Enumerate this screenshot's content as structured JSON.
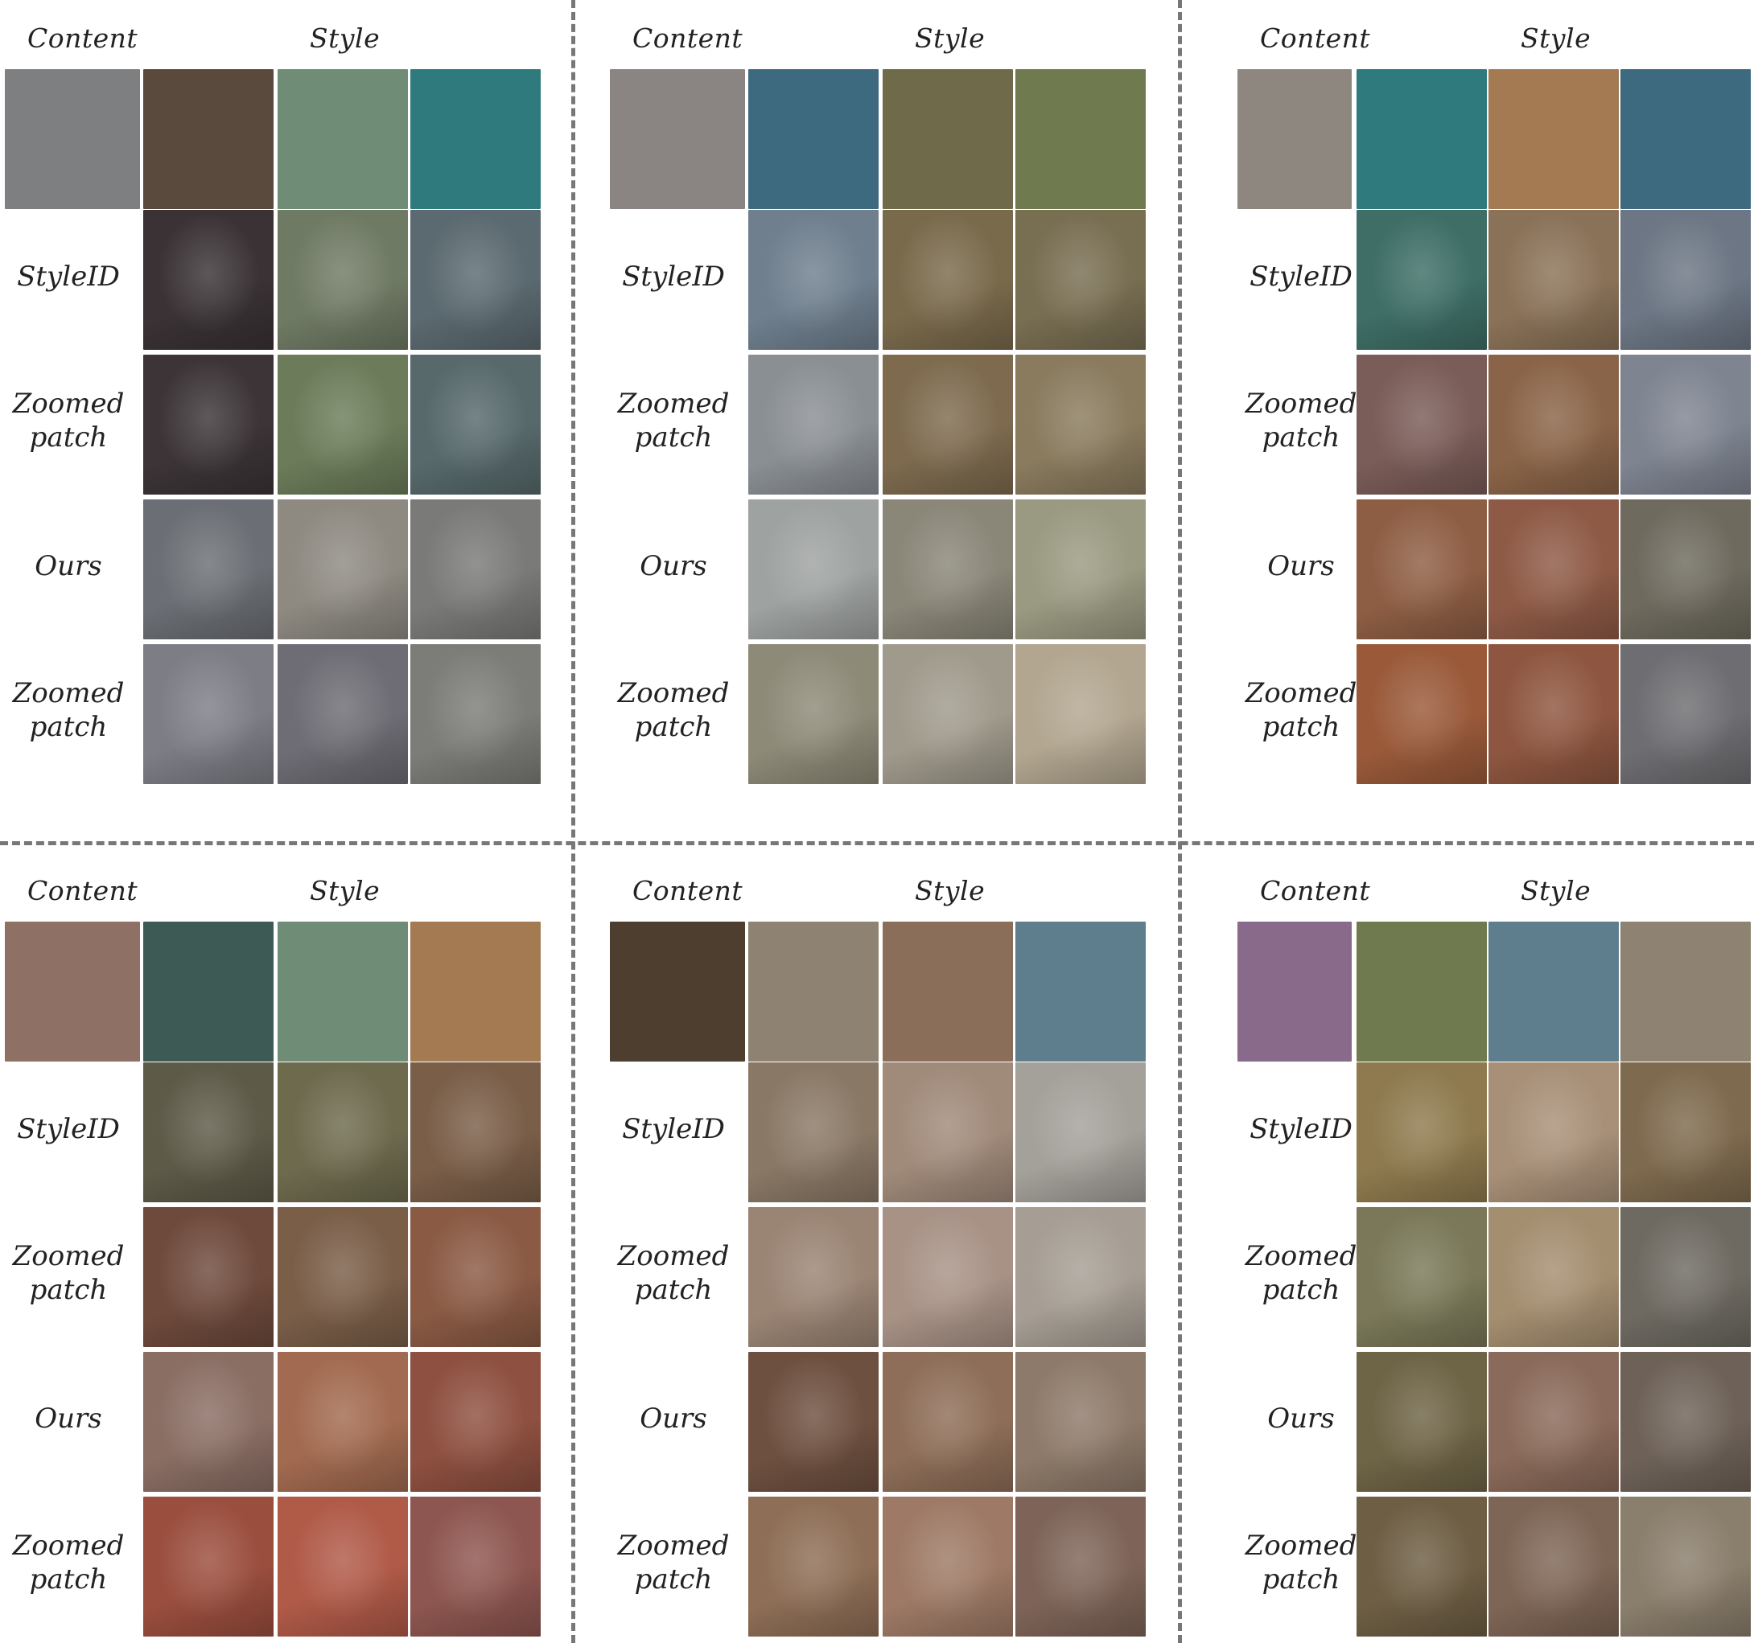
{
  "panels": [
    {
      "id": "cat-flowers",
      "headers": {
        "content": "Content",
        "style": "Style"
      },
      "rows": [
        {
          "label_1": "StyleID",
          "label_2": ""
        },
        {
          "label_1": "Zoomed",
          "label_2": "patch"
        },
        {
          "label_1": "Ours",
          "label_2": ""
        },
        {
          "label_1": "Zoomed",
          "label_2": "patch"
        }
      ],
      "colors": {
        "content": "#7d7f80",
        "styles": [
          "#5a4a3e",
          "#6e8c76",
          "#2f7a7c"
        ],
        "grid": [
          [
            "#3a3234",
            "#6f7a64",
            "#5b6a70"
          ],
          [
            "#3c3437",
            "#6c7c5a",
            "#57696b"
          ],
          [
            "#6b6e74",
            "#8e8a82",
            "#7a7a78"
          ],
          [
            "#7d7d86",
            "#6e6c74",
            "#7c7c78"
          ]
        ]
      }
    },
    {
      "id": "dog-white",
      "headers": {
        "content": "Content",
        "style": "Style"
      },
      "rows": [
        {
          "label_1": "StyleID",
          "label_2": ""
        },
        {
          "label_1": "Zoomed",
          "label_2": "patch"
        },
        {
          "label_1": "Ours",
          "label_2": ""
        },
        {
          "label_1": "Zoomed",
          "label_2": "patch"
        }
      ],
      "colors": {
        "content": "#8a8582",
        "styles": [
          "#3e6a80",
          "#6e6a4a",
          "#6f7a4e"
        ],
        "grid": [
          [
            "#6f7f8e",
            "#7a6a4c",
            "#786e52"
          ],
          [
            "#8a8f94",
            "#7e6b4f",
            "#8a7b5e"
          ],
          [
            "#9ea2a0",
            "#8a8678",
            "#9a9a82"
          ],
          [
            "#8e8a78",
            "#a09a8c",
            "#b2a690"
          ]
        ]
      }
    },
    {
      "id": "teddy-bear",
      "headers": {
        "content": "Content",
        "style": "Style"
      },
      "rows": [
        {
          "label_1": "StyleID",
          "label_2": ""
        },
        {
          "label_1": "Zoomed",
          "label_2": "patch"
        },
        {
          "label_1": "Ours",
          "label_2": ""
        },
        {
          "label_1": "Zoomed",
          "label_2": "patch"
        }
      ],
      "colors": {
        "content": "#8e8780",
        "styles": [
          "#2f7a7c",
          "#a37a52",
          "#3e6a80"
        ],
        "grid": [
          [
            "#3e6e66",
            "#8a7258",
            "#6c7684"
          ],
          [
            "#7a5c58",
            "#8a6448",
            "#7e8490"
          ],
          [
            "#8e5e44",
            "#8e5a46",
            "#6e6a5e"
          ],
          [
            "#9a5a3a",
            "#8e5640",
            "#6e6e72"
          ]
        ]
      }
    },
    {
      "id": "jar-brick",
      "headers": {
        "content": "Content",
        "style": "Style"
      },
      "rows": [
        {
          "label_1": "StyleID",
          "label_2": ""
        },
        {
          "label_1": "Zoomed",
          "label_2": "patch"
        },
        {
          "label_1": "Ours",
          "label_2": ""
        },
        {
          "label_1": "Zoomed",
          "label_2": "patch"
        }
      ],
      "colors": {
        "content": "#8e7064",
        "styles": [
          "#3e5a54",
          "#6e8c76",
          "#a37a52"
        ],
        "grid": [
          [
            "#5e5a48",
            "#6e6a4e",
            "#7a5e48"
          ],
          [
            "#6e4a3c",
            "#7a5e48",
            "#8a5a44"
          ],
          [
            "#8a6e64",
            "#a26a50",
            "#8e5040"
          ],
          [
            "#9a4e3e",
            "#b05a48",
            "#8e5650"
          ]
        ]
      }
    },
    {
      "id": "cat-orange",
      "headers": {
        "content": "Content",
        "style": "Style"
      },
      "rows": [
        {
          "label_1": "StyleID",
          "label_2": ""
        },
        {
          "label_1": "Zoomed",
          "label_2": "patch"
        },
        {
          "label_1": "Ours",
          "label_2": ""
        },
        {
          "label_1": "Zoomed",
          "label_2": "patch"
        }
      ],
      "colors": {
        "content": "#4e3e30",
        "styles": [
          "#8e8272",
          "#8a6e5a",
          "#5e7e8e"
        ],
        "grid": [
          [
            "#8a7866",
            "#a08a7a",
            "#a4a09a"
          ],
          [
            "#9a8474",
            "#a89286",
            "#a69e94"
          ],
          [
            "#6e5040",
            "#8e6e58",
            "#8e7a6a"
          ],
          [
            "#8e6e56",
            "#9e7a66",
            "#7e6458"
          ]
        ]
      }
    },
    {
      "id": "dog-golden",
      "headers": {
        "content": "Content",
        "style": "Style"
      },
      "rows": [
        {
          "label_1": "StyleID",
          "label_2": ""
        },
        {
          "label_1": "Zoomed",
          "label_2": "patch"
        },
        {
          "label_1": "Ours",
          "label_2": ""
        },
        {
          "label_1": "Zoomed",
          "label_2": "patch"
        }
      ],
      "colors": {
        "content": "#8a6a8a",
        "styles": [
          "#6f7a4e",
          "#5e7e8e",
          "#8e8272"
        ],
        "grid": [
          [
            "#8e7a4e",
            "#a89078",
            "#7e6a4e"
          ],
          [
            "#7a7858",
            "#a48e70",
            "#6e6a62"
          ],
          [
            "#6e6446",
            "#8a6a5a",
            "#6e6258"
          ],
          [
            "#6e5e44",
            "#7e6656",
            "#8a7e6c"
          ]
        ]
      }
    }
  ]
}
